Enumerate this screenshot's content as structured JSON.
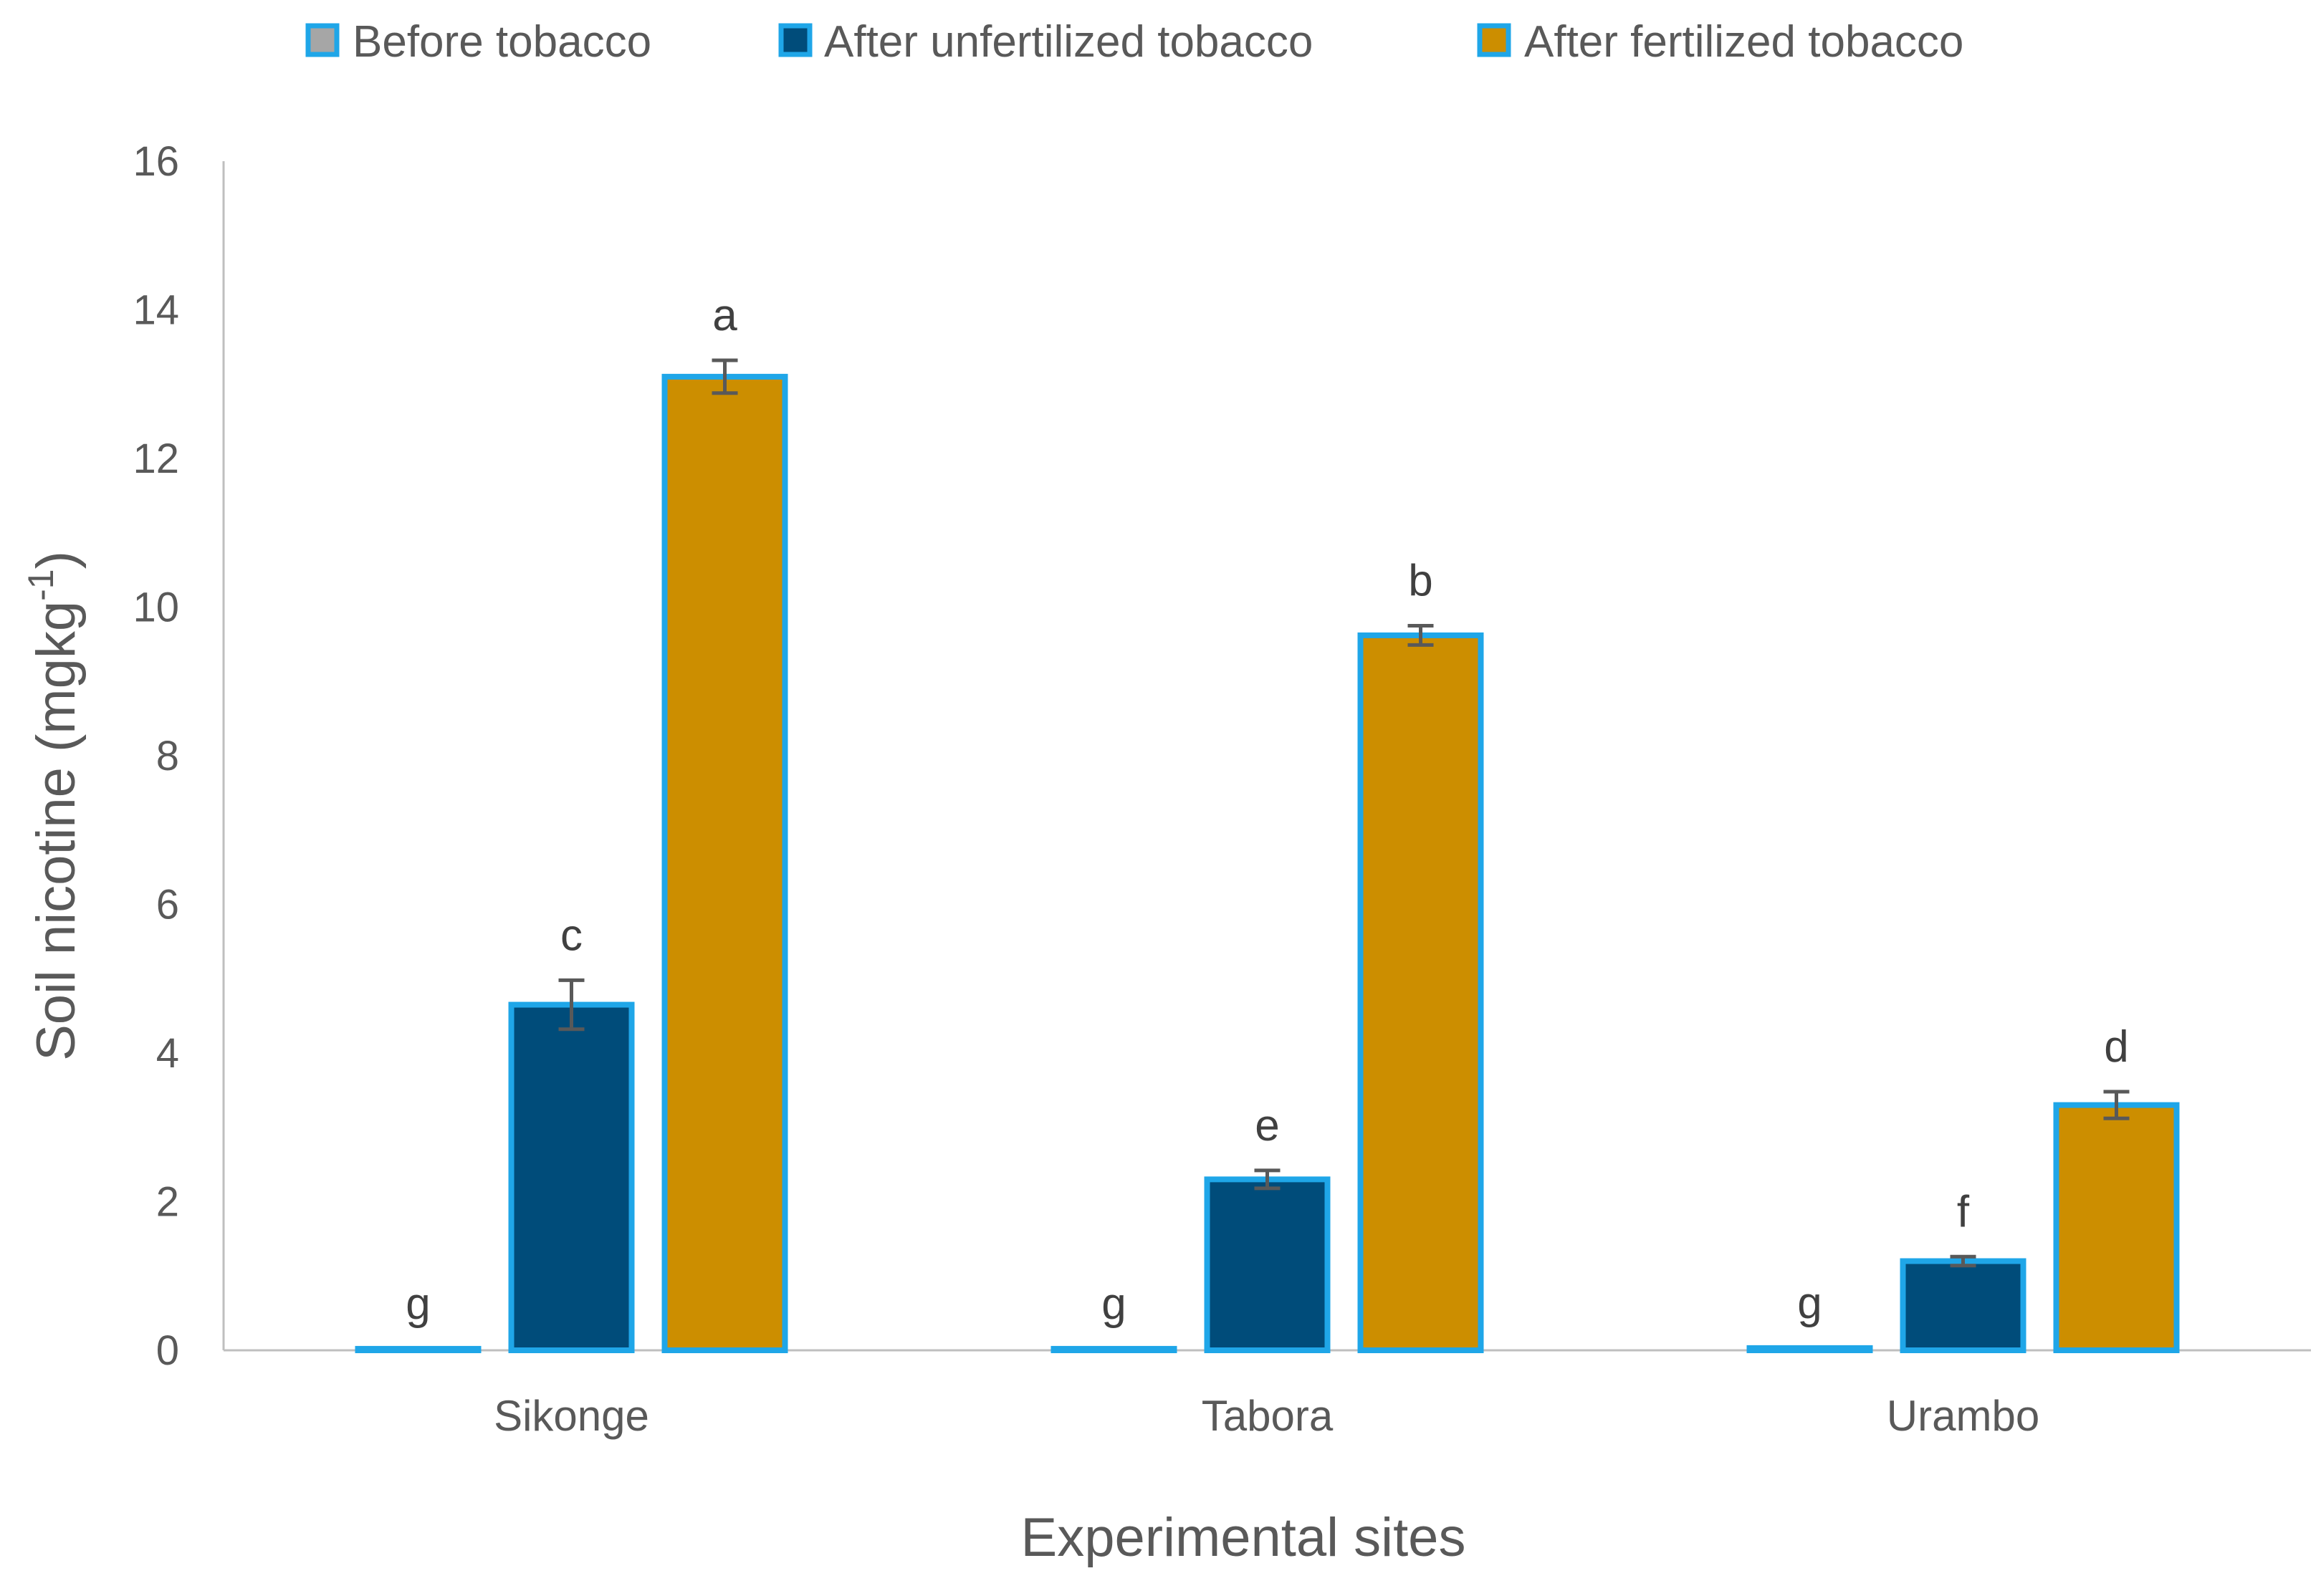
{
  "chart_data": {
    "type": "bar",
    "title": "",
    "xlabel": "Experimental sites",
    "ylabel": "Soil nicotine (mgkg",
    "ylabel_sup": "-1",
    "ylabel_close": ")",
    "ylim": [
      0,
      16
    ],
    "yticks": [
      0,
      2,
      4,
      6,
      8,
      10,
      12,
      14,
      16
    ],
    "grid": false,
    "legend_position": "top",
    "categories": [
      "Sikonge",
      "Tabora",
      "Urambo"
    ],
    "series": [
      {
        "name": "Before tobacco",
        "fill": "#1fa6e8",
        "legend_swatch": "#a6a6a6",
        "values": [
          0.02,
          0.02,
          0.03
        ],
        "errors": [
          0.0,
          0.0,
          0.0
        ],
        "labels": [
          "g",
          "g",
          "g"
        ]
      },
      {
        "name": "After unfertilized tobacco",
        "fill": "#004c7a",
        "legend_swatch": "#004c7a",
        "values": [
          4.65,
          2.3,
          1.2
        ],
        "errors": [
          0.33,
          0.12,
          0.06
        ],
        "labels": [
          "c",
          "e",
          "f"
        ]
      },
      {
        "name": "After fertilized tobacco",
        "fill": "#cc8e00",
        "legend_swatch": "#cc8e00",
        "values": [
          13.1,
          9.62,
          3.3
        ],
        "errors": [
          0.22,
          0.13,
          0.18
        ],
        "labels": [
          "a",
          "b",
          "d"
        ]
      }
    ],
    "bar_outline": "#1fa6e8",
    "error_bar_color": "#595959",
    "axis_color": "#bfbfbf"
  }
}
